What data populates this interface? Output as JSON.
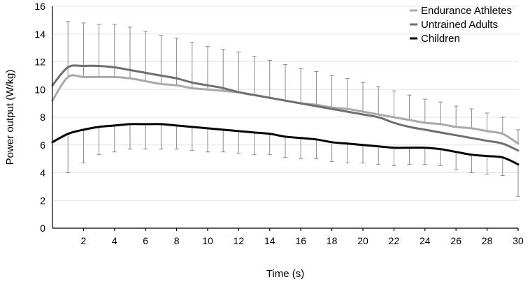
{
  "chart_data": {
    "type": "line",
    "title": "",
    "xlabel": "Time (s)",
    "ylabel": "Power output (W/kg)",
    "xlim": [
      0,
      30
    ],
    "ylim": [
      0,
      16
    ],
    "x_ticks": [
      "2",
      "4",
      "6",
      "8",
      "10",
      "12",
      "14",
      "16",
      "18",
      "20",
      "22",
      "24",
      "26",
      "28",
      "30"
    ],
    "y_ticks": [
      "0",
      "2",
      "4",
      "6",
      "8",
      "10",
      "12",
      "14",
      "16"
    ],
    "grid": "horizontal",
    "legend_position": "top-right",
    "x": [
      0,
      1,
      2,
      3,
      4,
      5,
      6,
      7,
      8,
      9,
      10,
      11,
      12,
      13,
      14,
      15,
      16,
      17,
      18,
      19,
      20,
      21,
      22,
      23,
      24,
      25,
      26,
      27,
      28,
      29,
      30
    ],
    "series": [
      {
        "name": "Endurance Athletes",
        "color": "#a9a9a9",
        "values": [
          9.2,
          10.9,
          10.9,
          10.9,
          10.9,
          10.8,
          10.6,
          10.4,
          10.3,
          10.1,
          10.0,
          9.9,
          9.8,
          9.6,
          9.4,
          9.2,
          9.0,
          8.9,
          8.7,
          8.6,
          8.4,
          8.2,
          8.0,
          7.8,
          7.6,
          7.5,
          7.3,
          7.2,
          7.0,
          6.8,
          6.1
        ],
        "sd": [
          0,
          4.0,
          3.9,
          3.8,
          3.8,
          3.7,
          3.6,
          3.5,
          3.4,
          3.3,
          3.1,
          3.0,
          2.9,
          2.8,
          2.7,
          2.6,
          2.5,
          2.4,
          2.3,
          2.2,
          2.1,
          2.0,
          1.9,
          1.8,
          1.7,
          1.6,
          1.5,
          1.4,
          1.3,
          1.2,
          1.0
        ]
      },
      {
        "name": "Untrained Adults",
        "color": "#6e6e6e",
        "values": [
          10.3,
          11.6,
          11.7,
          11.7,
          11.6,
          11.4,
          11.2,
          11.0,
          10.8,
          10.5,
          10.3,
          10.1,
          9.8,
          9.6,
          9.4,
          9.2,
          9.0,
          8.8,
          8.6,
          8.4,
          8.2,
          8.0,
          7.6,
          7.3,
          7.1,
          6.9,
          6.7,
          6.5,
          6.3,
          6.1,
          5.6
        ]
      },
      {
        "name": "Children",
        "color": "#000000",
        "values": [
          6.2,
          6.8,
          7.1,
          7.3,
          7.4,
          7.5,
          7.5,
          7.5,
          7.4,
          7.3,
          7.2,
          7.1,
          7.0,
          6.9,
          6.8,
          6.6,
          6.5,
          6.4,
          6.2,
          6.1,
          6.0,
          5.9,
          5.8,
          5.8,
          5.8,
          5.7,
          5.5,
          5.3,
          5.2,
          5.1,
          4.6
        ],
        "sd": [
          0,
          2.8,
          2.4,
          2.0,
          1.9,
          1.8,
          1.8,
          1.8,
          1.7,
          1.7,
          1.7,
          1.6,
          1.6,
          1.6,
          1.5,
          1.5,
          1.5,
          1.4,
          1.4,
          1.4,
          1.3,
          1.3,
          1.3,
          1.2,
          1.2,
          1.2,
          1.3,
          1.3,
          1.3,
          1.3,
          2.3
        ]
      }
    ]
  }
}
